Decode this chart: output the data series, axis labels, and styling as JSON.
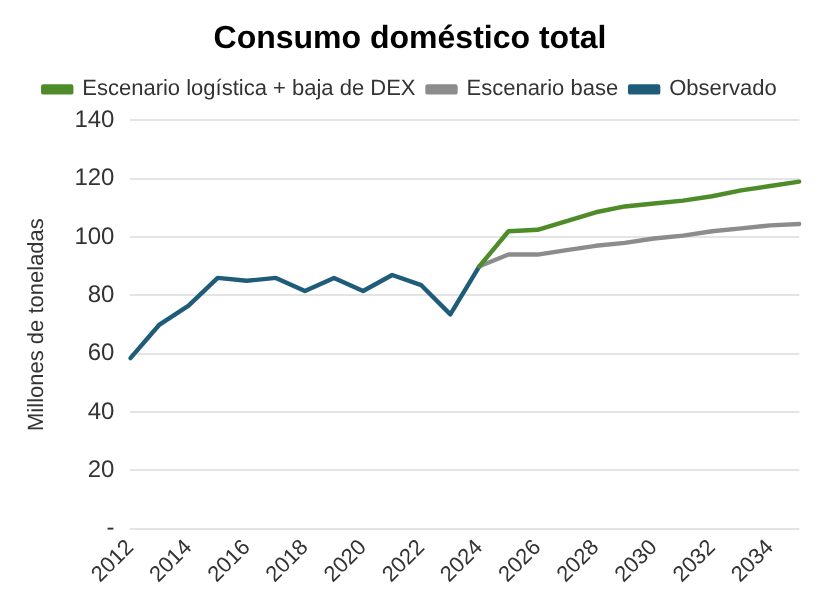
{
  "chart_data": {
    "type": "line",
    "title": "Consumo doméstico total",
    "ylabel": "Millones de toneladas",
    "categories": [
      "2012",
      null,
      "2014",
      null,
      "2016",
      null,
      "2018",
      null,
      "2020",
      null,
      "2022",
      null,
      "2024",
      null,
      "2026",
      null,
      "2028",
      null,
      "2030",
      null,
      "2032",
      null,
      "2034",
      null
    ],
    "series": [
      {
        "name": "Escenario logística + baja de DEX",
        "color": "#4e8c2a",
        "values": [
          null,
          null,
          null,
          null,
          null,
          null,
          null,
          null,
          null,
          null,
          null,
          null,
          90,
          102,
          102.5,
          105.5,
          108.5,
          110.5,
          111.5,
          112.5,
          114,
          116,
          117.5,
          119
        ]
      },
      {
        "name": "Escenario base",
        "color": "#8c8c8c",
        "values": [
          null,
          null,
          null,
          null,
          null,
          null,
          null,
          null,
          null,
          null,
          null,
          null,
          90,
          94,
          94,
          95.5,
          97,
          98,
          99.5,
          100.5,
          102,
          103,
          104,
          104.5
        ]
      },
      {
        "name": "Observado",
        "color": "#1f5c7a",
        "values": [
          58.5,
          70,
          76.5,
          86,
          85,
          86,
          81.5,
          86,
          81.5,
          87,
          83.5,
          73.5,
          90,
          null,
          null,
          null,
          null,
          null,
          null,
          null,
          null,
          null,
          null,
          null
        ]
      }
    ],
    "ylim": [
      0,
      140
    ],
    "yticks": [
      {
        "value": 0,
        "label": "-"
      },
      20,
      40,
      60,
      80,
      100,
      120,
      140
    ],
    "grid": "y",
    "legend": "top",
    "marker": "none",
    "line_style": "solid"
  }
}
